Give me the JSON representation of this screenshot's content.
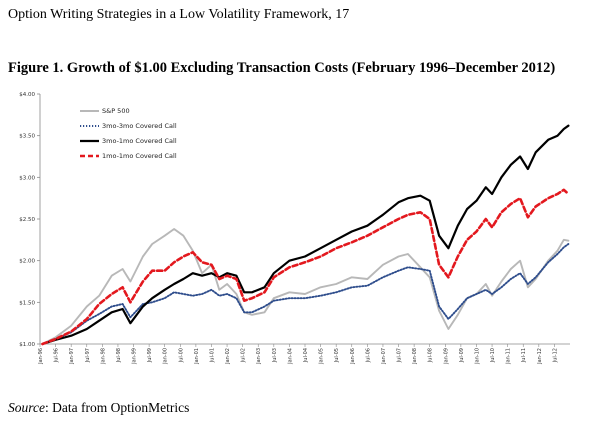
{
  "page": {
    "header": "Option Writing Strategies in a Low Volatility Framework, 17",
    "source_label": "Source",
    "source_text": ": Data from OptionMetrics"
  },
  "chart_data": {
    "type": "line",
    "title": "Figure 1. Growth of $1.00 Excluding Transaction Costs (February 1996–December 2012)",
    "xlabel": "",
    "ylabel": "",
    "ylim": [
      1.0,
      4.0
    ],
    "xlim": [
      1996.0,
      2013.0
    ],
    "yticks": [
      1.0,
      1.5,
      2.0,
      2.5,
      3.0,
      3.5,
      4.0
    ],
    "ytick_labels": [
      "$1.00",
      "$1.50",
      "$2.00",
      "$2.50",
      "$3.00",
      "$3.50",
      "$4.00"
    ],
    "xtick_labels": [
      "Jan-96",
      "Jul-96",
      "Jan-97",
      "Jul-97",
      "Jan-98",
      "Jul-98",
      "Jan-99",
      "Jul-99",
      "Jan-00",
      "Jul-00",
      "Jan-01",
      "Jul-01",
      "Jan-02",
      "Jul-02",
      "Jan-03",
      "Jul-03",
      "Jan-04",
      "Jul-04",
      "Jan-05",
      "Jul-05",
      "Jan-06",
      "Jul-06",
      "Jan-07",
      "Jul-07",
      "Jan-08",
      "Jul-08",
      "Jan-09",
      "Jul-09",
      "Jan-10",
      "Jul-10",
      "Jan-11",
      "Jul-11",
      "Jan-12",
      "Jul-12"
    ],
    "grid": false,
    "legend_position": "top-left",
    "series": [
      {
        "name": "S&P 500",
        "color": "#b8b8b8",
        "style": "solid",
        "x": [
          1996.08,
          1996.5,
          1997.0,
          1997.5,
          1997.9,
          1998.3,
          1998.65,
          1998.9,
          1999.3,
          1999.6,
          2000.0,
          2000.3,
          2000.6,
          2000.9,
          2001.2,
          2001.5,
          2001.75,
          2002.0,
          2002.3,
          2002.55,
          2002.8,
          2003.2,
          2003.5,
          2004.0,
          2004.5,
          2005.0,
          2005.5,
          2006.0,
          2006.5,
          2007.0,
          2007.5,
          2007.8,
          2008.2,
          2008.5,
          2008.8,
          2009.1,
          2009.4,
          2009.7,
          2010.0,
          2010.3,
          2010.5,
          2010.8,
          2011.1,
          2011.4,
          2011.65,
          2011.9,
          2012.3,
          2012.6,
          2012.8,
          2012.95
        ],
        "values": [
          1.0,
          1.08,
          1.22,
          1.45,
          1.58,
          1.82,
          1.9,
          1.75,
          2.05,
          2.2,
          2.3,
          2.38,
          2.3,
          2.12,
          1.85,
          1.95,
          1.65,
          1.72,
          1.6,
          1.38,
          1.35,
          1.38,
          1.55,
          1.62,
          1.6,
          1.68,
          1.72,
          1.8,
          1.78,
          1.95,
          2.05,
          2.08,
          1.92,
          1.8,
          1.4,
          1.18,
          1.35,
          1.55,
          1.6,
          1.72,
          1.58,
          1.75,
          1.9,
          2.0,
          1.68,
          1.78,
          2.0,
          2.12,
          2.25,
          2.24
        ]
      },
      {
        "name": "3mo-3mo Covered Call",
        "color": "#2e4d8c",
        "style": "dotted",
        "x": [
          1996.08,
          1996.5,
          1997.0,
          1997.5,
          1997.9,
          1998.3,
          1998.65,
          1998.9,
          1999.3,
          1999.6,
          2000.0,
          2000.3,
          2000.6,
          2000.9,
          2001.2,
          2001.5,
          2001.75,
          2002.0,
          2002.3,
          2002.55,
          2002.8,
          2003.2,
          2003.5,
          2004.0,
          2004.5,
          2005.0,
          2005.5,
          2006.0,
          2006.5,
          2007.0,
          2007.5,
          2007.8,
          2008.2,
          2008.5,
          2008.8,
          2009.1,
          2009.4,
          2009.7,
          2010.0,
          2010.3,
          2010.5,
          2010.8,
          2011.1,
          2011.4,
          2011.65,
          2011.9,
          2012.3,
          2012.6,
          2012.8,
          2012.95
        ],
        "values": [
          1.0,
          1.06,
          1.14,
          1.28,
          1.36,
          1.45,
          1.48,
          1.32,
          1.48,
          1.5,
          1.55,
          1.62,
          1.6,
          1.58,
          1.6,
          1.65,
          1.58,
          1.6,
          1.55,
          1.38,
          1.38,
          1.45,
          1.52,
          1.55,
          1.55,
          1.58,
          1.62,
          1.68,
          1.7,
          1.8,
          1.88,
          1.92,
          1.9,
          1.88,
          1.45,
          1.3,
          1.42,
          1.55,
          1.6,
          1.65,
          1.6,
          1.68,
          1.78,
          1.85,
          1.72,
          1.8,
          1.98,
          2.08,
          2.16,
          2.2
        ]
      },
      {
        "name": "3mo-1mo Covered Call",
        "color": "#000000",
        "style": "solid",
        "x": [
          1996.08,
          1996.5,
          1997.0,
          1997.5,
          1997.9,
          1998.3,
          1998.65,
          1998.9,
          1999.3,
          1999.6,
          2000.0,
          2000.3,
          2000.6,
          2000.9,
          2001.2,
          2001.5,
          2001.75,
          2002.0,
          2002.3,
          2002.55,
          2002.8,
          2003.2,
          2003.5,
          2004.0,
          2004.5,
          2005.0,
          2005.5,
          2006.0,
          2006.5,
          2007.0,
          2007.5,
          2007.8,
          2008.2,
          2008.5,
          2008.8,
          2009.1,
          2009.4,
          2009.7,
          2010.0,
          2010.3,
          2010.5,
          2010.8,
          2011.1,
          2011.4,
          2011.65,
          2011.9,
          2012.3,
          2012.6,
          2012.8,
          2012.95
        ],
        "values": [
          1.0,
          1.05,
          1.1,
          1.18,
          1.28,
          1.38,
          1.42,
          1.25,
          1.45,
          1.55,
          1.65,
          1.72,
          1.78,
          1.85,
          1.82,
          1.85,
          1.8,
          1.85,
          1.82,
          1.62,
          1.62,
          1.68,
          1.85,
          2.0,
          2.05,
          2.15,
          2.25,
          2.35,
          2.42,
          2.55,
          2.7,
          2.75,
          2.78,
          2.72,
          2.3,
          2.15,
          2.42,
          2.62,
          2.72,
          2.88,
          2.8,
          3.0,
          3.15,
          3.25,
          3.1,
          3.3,
          3.45,
          3.5,
          3.58,
          3.62
        ]
      },
      {
        "name": "1mo-1mo Covered Call",
        "color": "#e3181e",
        "style": "dashed",
        "x": [
          1996.08,
          1996.5,
          1997.0,
          1997.5,
          1997.9,
          1998.3,
          1998.65,
          1998.9,
          1999.3,
          1999.6,
          2000.0,
          2000.3,
          2000.6,
          2000.9,
          2001.2,
          2001.5,
          2001.75,
          2002.0,
          2002.3,
          2002.55,
          2002.8,
          2003.2,
          2003.5,
          2004.0,
          2004.5,
          2005.0,
          2005.5,
          2006.0,
          2006.5,
          2007.0,
          2007.5,
          2007.8,
          2008.2,
          2008.5,
          2008.8,
          2009.1,
          2009.4,
          2009.7,
          2010.0,
          2010.3,
          2010.5,
          2010.8,
          2011.1,
          2011.4,
          2011.65,
          2011.9,
          2012.3,
          2012.6,
          2012.8,
          2012.95
        ],
        "values": [
          1.0,
          1.06,
          1.15,
          1.3,
          1.48,
          1.6,
          1.68,
          1.5,
          1.75,
          1.88,
          1.88,
          1.98,
          2.05,
          2.1,
          1.98,
          1.95,
          1.78,
          1.82,
          1.78,
          1.52,
          1.55,
          1.62,
          1.8,
          1.92,
          1.98,
          2.05,
          2.15,
          2.22,
          2.3,
          2.4,
          2.5,
          2.55,
          2.58,
          2.5,
          1.95,
          1.8,
          2.05,
          2.25,
          2.35,
          2.5,
          2.4,
          2.58,
          2.68,
          2.75,
          2.52,
          2.65,
          2.75,
          2.8,
          2.85,
          2.8
        ]
      }
    ]
  }
}
